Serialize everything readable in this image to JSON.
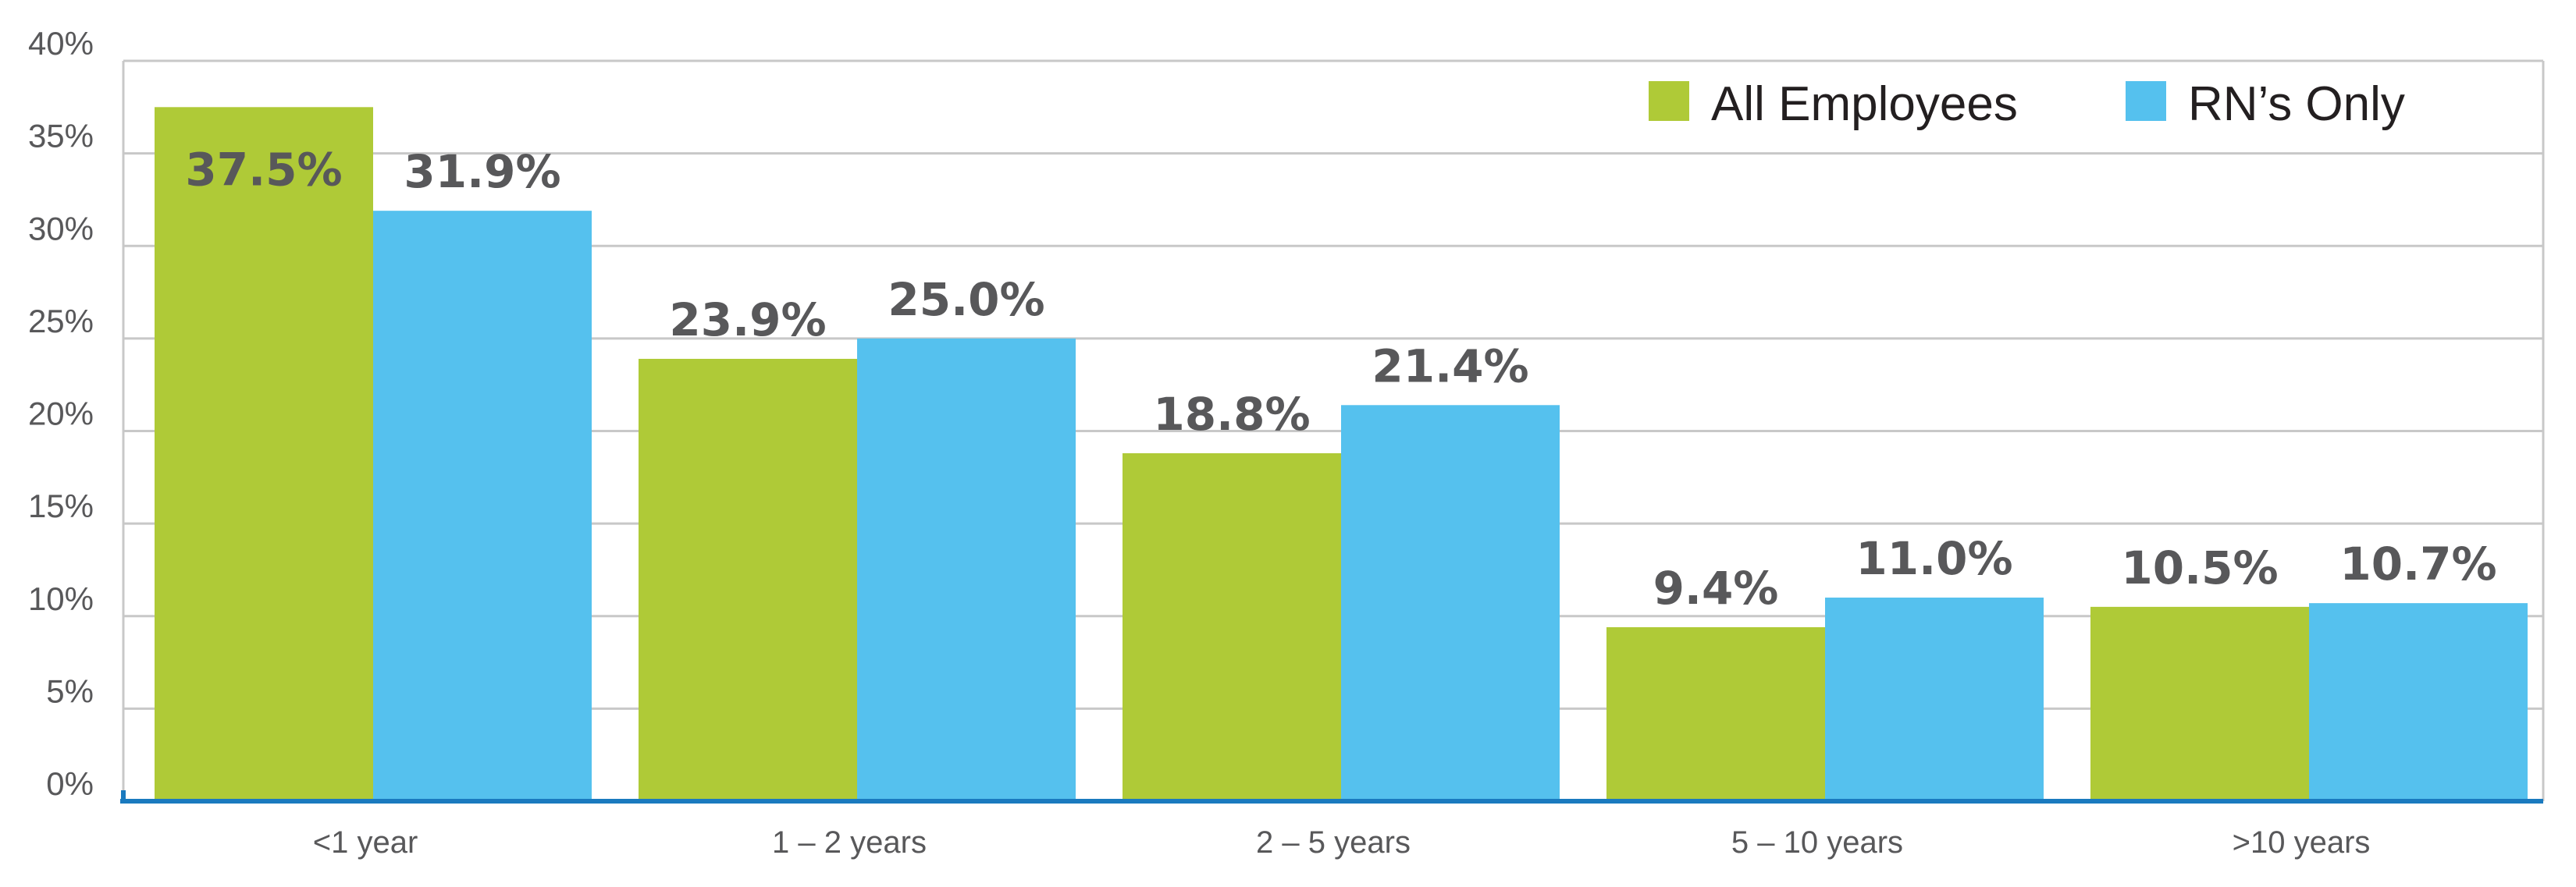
{
  "chart_data": {
    "type": "bar",
    "title": "",
    "xlabel": "",
    "ylabel": "",
    "categories": [
      "<1 year",
      "1 – 2 years",
      "2 – 5 years",
      "5 – 10 years",
      ">10 years"
    ],
    "series": [
      {
        "name": "All Employees",
        "color": "#afca37",
        "values": [
          37.5,
          23.9,
          18.8,
          9.4,
          10.5
        ],
        "labels": [
          "37.5%",
          "23.9%",
          "18.8%",
          "9.4%",
          "10.5%"
        ]
      },
      {
        "name": "RN’s Only",
        "color": "#55c1ee",
        "values": [
          31.9,
          25.0,
          21.4,
          11.0,
          10.7
        ],
        "labels": [
          "31.9%",
          "25.0%",
          "21.4%",
          "11.0%",
          "10.7%"
        ]
      }
    ],
    "ylim": [
      0,
      40
    ],
    "yticks": [
      0,
      5,
      10,
      15,
      20,
      25,
      30,
      35,
      40
    ],
    "ytick_labels": [
      "0%",
      "5%",
      "10%",
      "15%",
      "20%",
      "25%",
      "30%",
      "35%",
      "40%"
    ],
    "grid": true,
    "legend_position": "top-right",
    "axis_color": "#1a7abf",
    "grid_color": "#c8c8c8"
  }
}
